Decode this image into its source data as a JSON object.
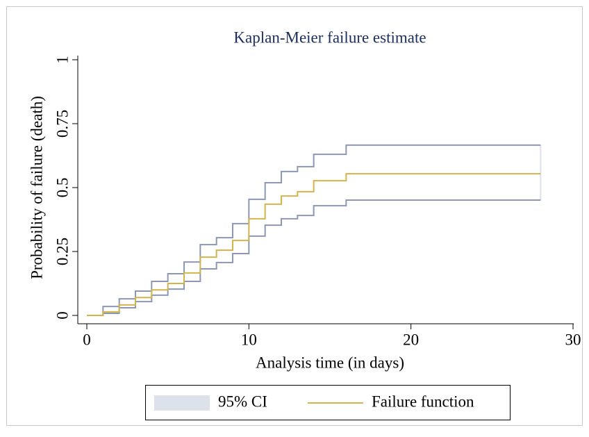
{
  "chart_data": {
    "type": "step",
    "title": "Kaplan-Meier failure estimate",
    "x_label": "Analysis time (in days)",
    "y_label": "Probability of failure (death)",
    "x": [
      0,
      1,
      2,
      3,
      4,
      5,
      6,
      7,
      8,
      9,
      10,
      11,
      12,
      13,
      14,
      16,
      28
    ],
    "series": [
      {
        "name": "Failure function",
        "color": "#d2b44c",
        "values": [
          0,
          0.014,
          0.041,
          0.07,
          0.1,
          0.125,
          0.166,
          0.228,
          0.255,
          0.293,
          0.378,
          0.435,
          0.467,
          0.484,
          0.527,
          0.554,
          0.554
        ]
      }
    ],
    "ci": {
      "name": "95% CI",
      "color": "#8d97b3",
      "swatch": "#dde1ea",
      "upper": [
        0,
        0.035,
        0.065,
        0.095,
        0.133,
        0.163,
        0.209,
        0.277,
        0.304,
        0.359,
        0.454,
        0.519,
        0.563,
        0.582,
        0.63,
        0.666,
        0.666
      ],
      "lower": [
        0,
        0.008,
        0.03,
        0.054,
        0.079,
        0.103,
        0.133,
        0.182,
        0.207,
        0.242,
        0.31,
        0.353,
        0.378,
        0.391,
        0.429,
        0.451,
        0.451
      ]
    },
    "xlim": [
      0,
      30
    ],
    "xticks": [
      0,
      10,
      20,
      30
    ],
    "ylim": [
      0,
      1
    ],
    "yticks": [
      0,
      0.25,
      0.5,
      0.75,
      1
    ],
    "grid": false
  }
}
